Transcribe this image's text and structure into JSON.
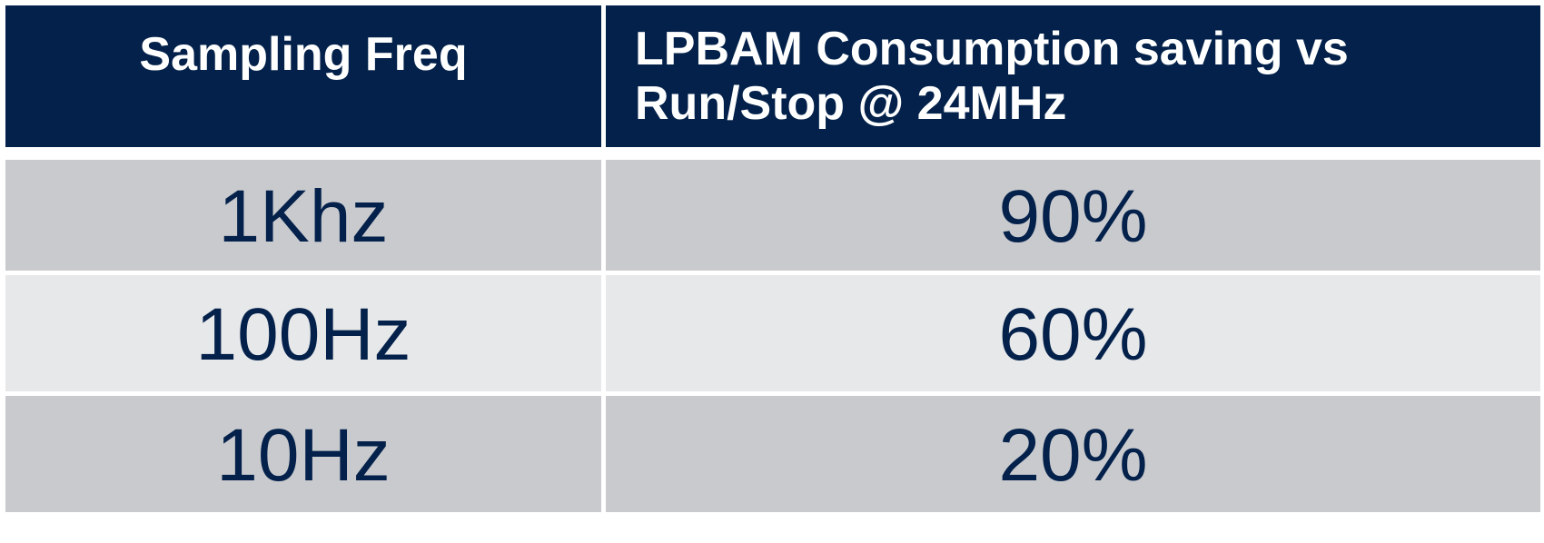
{
  "table": {
    "headers": [
      "Sampling Freq",
      "LPBAM Consumption saving vs Run/Stop @ 24MHz"
    ],
    "rows": [
      {
        "freq": "1Khz",
        "saving": "90%"
      },
      {
        "freq": "100Hz",
        "saving": "60%"
      },
      {
        "freq": "10Hz",
        "saving": "20%"
      }
    ]
  },
  "colors": {
    "header_bg": "#03214a",
    "header_text": "#ffffff",
    "row_dark": "#c9cace",
    "row_light": "#e7e8ea",
    "body_text": "#03214a"
  }
}
